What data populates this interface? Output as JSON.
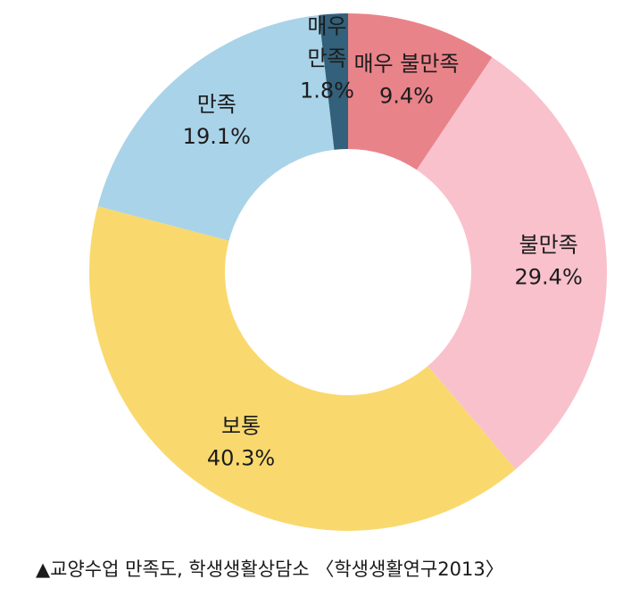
{
  "chart_data": {
    "type": "pie",
    "slices": [
      {
        "label_lines": [
          "매우 불만족"
        ],
        "value": 9.4,
        "value_label": "9.4%",
        "color": "#e9838a"
      },
      {
        "label_lines": [
          "불만족"
        ],
        "value": 29.4,
        "value_label": "29.4%",
        "color": "#f9c1cc"
      },
      {
        "label_lines": [
          "보통"
        ],
        "value": 40.3,
        "value_label": "40.3%",
        "color": "#f9d96e"
      },
      {
        "label_lines": [
          "만족"
        ],
        "value": 19.1,
        "value_label": "19.1%",
        "color": "#a9d3e8"
      },
      {
        "label_lines": [
          "매우",
          "만족"
        ],
        "value": 1.8,
        "value_label": "1.8%",
        "color": "#33607a"
      }
    ],
    "start_angle_deg": 0,
    "direction": "clockwise",
    "donut": true
  },
  "caption": "▲교양수업 만족도, 학생생활상담소 〈학생생활연구2013〉"
}
